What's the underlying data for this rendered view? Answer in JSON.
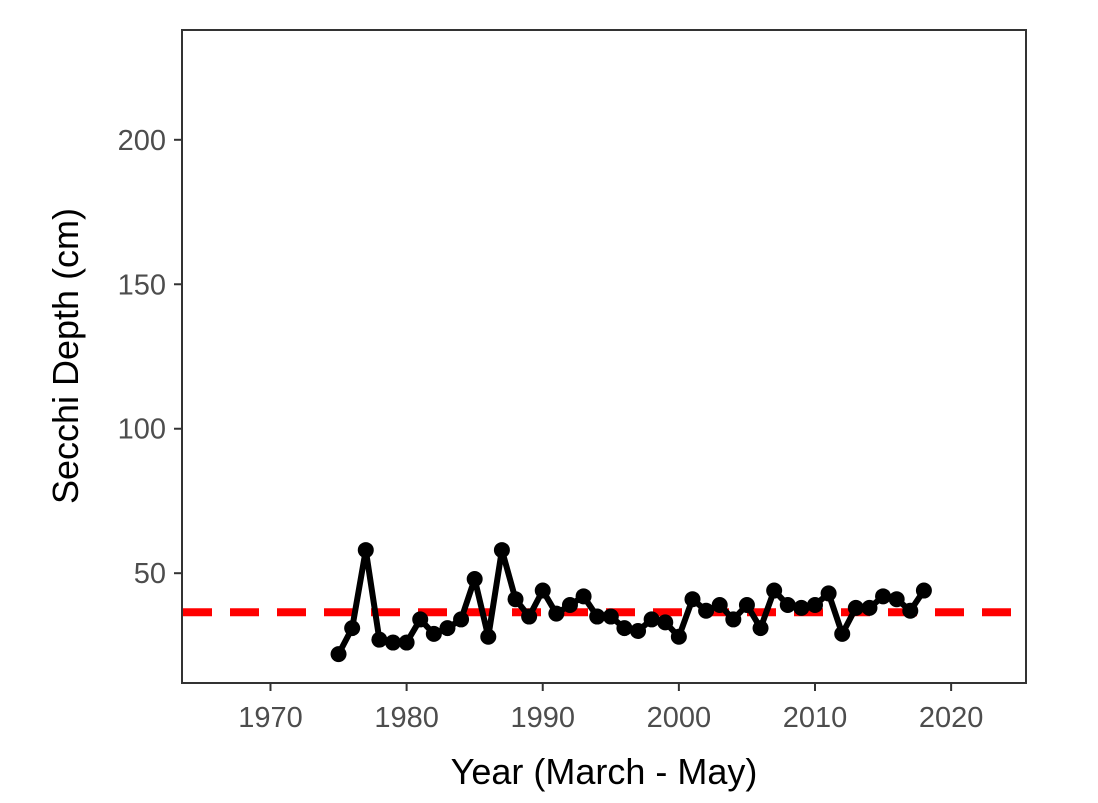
{
  "chart_data": {
    "type": "line",
    "xlabel": "Year (March - May)",
    "ylabel": "Secchi Depth (cm)",
    "xlim": [
      1963.5,
      2025.5
    ],
    "ylim": [
      12,
      238
    ],
    "x_ticks": [
      1970,
      1980,
      1990,
      2000,
      2010,
      2020
    ],
    "y_ticks": [
      50,
      100,
      150,
      200
    ],
    "grid": false,
    "series": [
      {
        "color": "#000000",
        "markers": true,
        "x": [
          1975,
          1976,
          1977,
          1978,
          1979,
          1980,
          1981,
          1982,
          1983,
          1984,
          1985,
          1986,
          1987,
          1988,
          1989,
          1990,
          1991,
          1992,
          1993,
          1994,
          1995,
          1996,
          1997,
          1998,
          1999,
          2000,
          2001,
          2002,
          2003,
          2004,
          2005,
          2006,
          2007,
          2008,
          2009,
          2010,
          2011,
          2012,
          2013,
          2014,
          2015,
          2016,
          2017,
          2018
        ],
        "y": [
          22,
          31,
          58,
          27,
          26,
          26,
          34,
          29,
          31,
          34,
          48,
          28,
          58,
          41,
          35,
          44,
          36,
          39,
          42,
          35,
          35,
          31,
          30,
          34,
          33,
          28,
          41,
          37,
          39,
          34,
          39,
          31,
          44,
          39,
          38,
          39,
          43,
          29,
          38,
          38,
          42,
          41,
          37,
          44
        ]
      }
    ],
    "reference_lines": [
      {
        "orientation": "horizontal",
        "y": 36.5,
        "color": "#ff0000",
        "style": "dashed"
      }
    ]
  }
}
